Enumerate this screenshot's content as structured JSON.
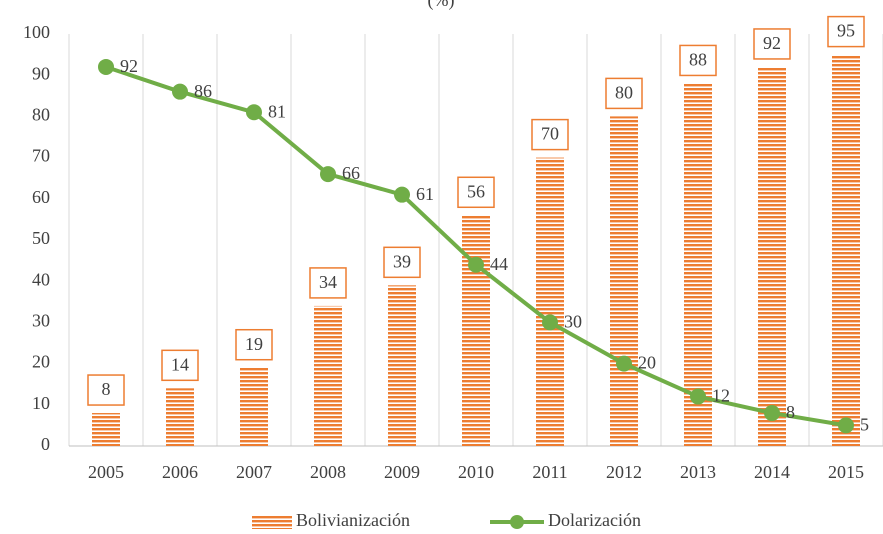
{
  "chart_data": {
    "type": "bar_line",
    "title": "(%)",
    "categories": [
      "2005",
      "2006",
      "2007",
      "2008",
      "2009",
      "2010",
      "2011",
      "2012",
      "2013",
      "2014",
      "2015"
    ],
    "series": [
      {
        "name": "Bolivianización",
        "type": "bar",
        "color": "#ed7d31",
        "values": [
          8,
          14,
          19,
          34,
          39,
          56,
          70,
          80,
          88,
          92,
          95
        ]
      },
      {
        "name": "Dolarización",
        "type": "line",
        "color": "#70ad47",
        "values": [
          92,
          86,
          81,
          66,
          61,
          44,
          30,
          20,
          12,
          8,
          5
        ]
      }
    ],
    "ylim": [
      0,
      100
    ],
    "yticks": [
      0,
      10,
      20,
      30,
      40,
      50,
      60,
      70,
      80,
      90,
      100
    ],
    "grid": true
  }
}
